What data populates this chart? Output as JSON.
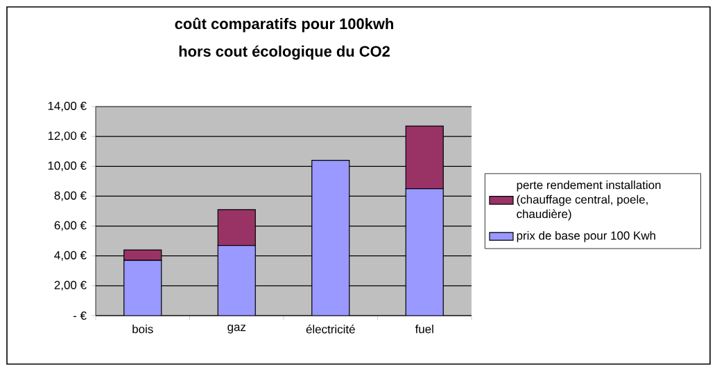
{
  "chart_data": {
    "type": "bar",
    "title": "coût comparatifs pour 100kwh",
    "subtitle": "hors cout écologique du CO2",
    "categories": [
      "bois",
      "gaz",
      "électricité",
      "fuel"
    ],
    "stacked": true,
    "series": [
      {
        "name": "prix de base pour 100 Kwh",
        "color": "#9999ff",
        "values": [
          3.7,
          4.7,
          10.4,
          8.5
        ]
      },
      {
        "name": "perte rendement installation (chauffage central, poele, chaudière)",
        "color": "#993366",
        "values": [
          0.7,
          2.4,
          0,
          4.2
        ]
      }
    ],
    "ylim": [
      0,
      14
    ],
    "yticks": [
      {
        "value": 0,
        "label": "-   €"
      },
      {
        "value": 2,
        "label": "2,00 €"
      },
      {
        "value": 4,
        "label": "4,00 €"
      },
      {
        "value": 6,
        "label": "6,00 €"
      },
      {
        "value": 8,
        "label": "8,00 €"
      },
      {
        "value": 10,
        "label": "10,00 €"
      },
      {
        "value": 12,
        "label": "12,00 €"
      },
      {
        "value": 14,
        "label": "14,00 €"
      }
    ],
    "grid": "y",
    "legend": "right"
  }
}
